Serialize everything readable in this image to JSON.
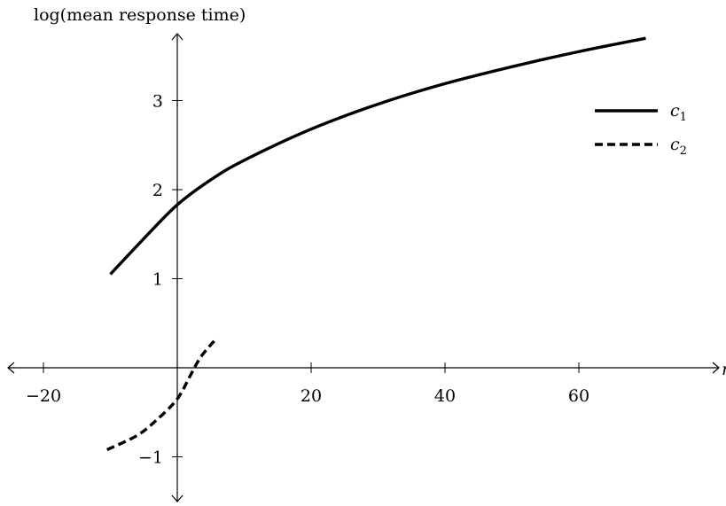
{
  "chart_data": {
    "type": "line",
    "title": "",
    "xlabel": "r",
    "ylabel": "log(mean response time)",
    "xlim": [
      -25,
      82
    ],
    "ylim": [
      -1.5,
      3.7
    ],
    "x_ticks": [
      {
        "value": -20,
        "label": "−20"
      },
      {
        "value": 20,
        "label": "20"
      },
      {
        "value": 40,
        "label": "40"
      },
      {
        "value": 60,
        "label": "60"
      }
    ],
    "y_ticks": [
      {
        "value": -1,
        "label": "−1"
      },
      {
        "value": 1,
        "label": "1"
      },
      {
        "value": 2,
        "label": "2"
      },
      {
        "value": 3,
        "label": "3"
      }
    ],
    "grid": false,
    "legend_position": "top-right",
    "colors": {
      "line": "#000000",
      "axis": "#000000"
    },
    "series": [
      {
        "name": "c1",
        "style": "solid",
        "x": [
          -10,
          -5,
          0,
          5,
          10,
          20,
          30,
          40,
          50,
          60,
          70
        ],
        "y": [
          1.05,
          1.45,
          1.83,
          2.11,
          2.33,
          2.68,
          2.96,
          3.19,
          3.38,
          3.55,
          3.7
        ]
      },
      {
        "name": "c2",
        "style": "dashed",
        "x": [
          -10.5,
          -6,
          -3,
          0,
          2,
          3.5,
          5.5
        ],
        "y": [
          -0.92,
          -0.76,
          -0.58,
          -0.35,
          -0.08,
          0.12,
          0.3
        ]
      }
    ]
  }
}
